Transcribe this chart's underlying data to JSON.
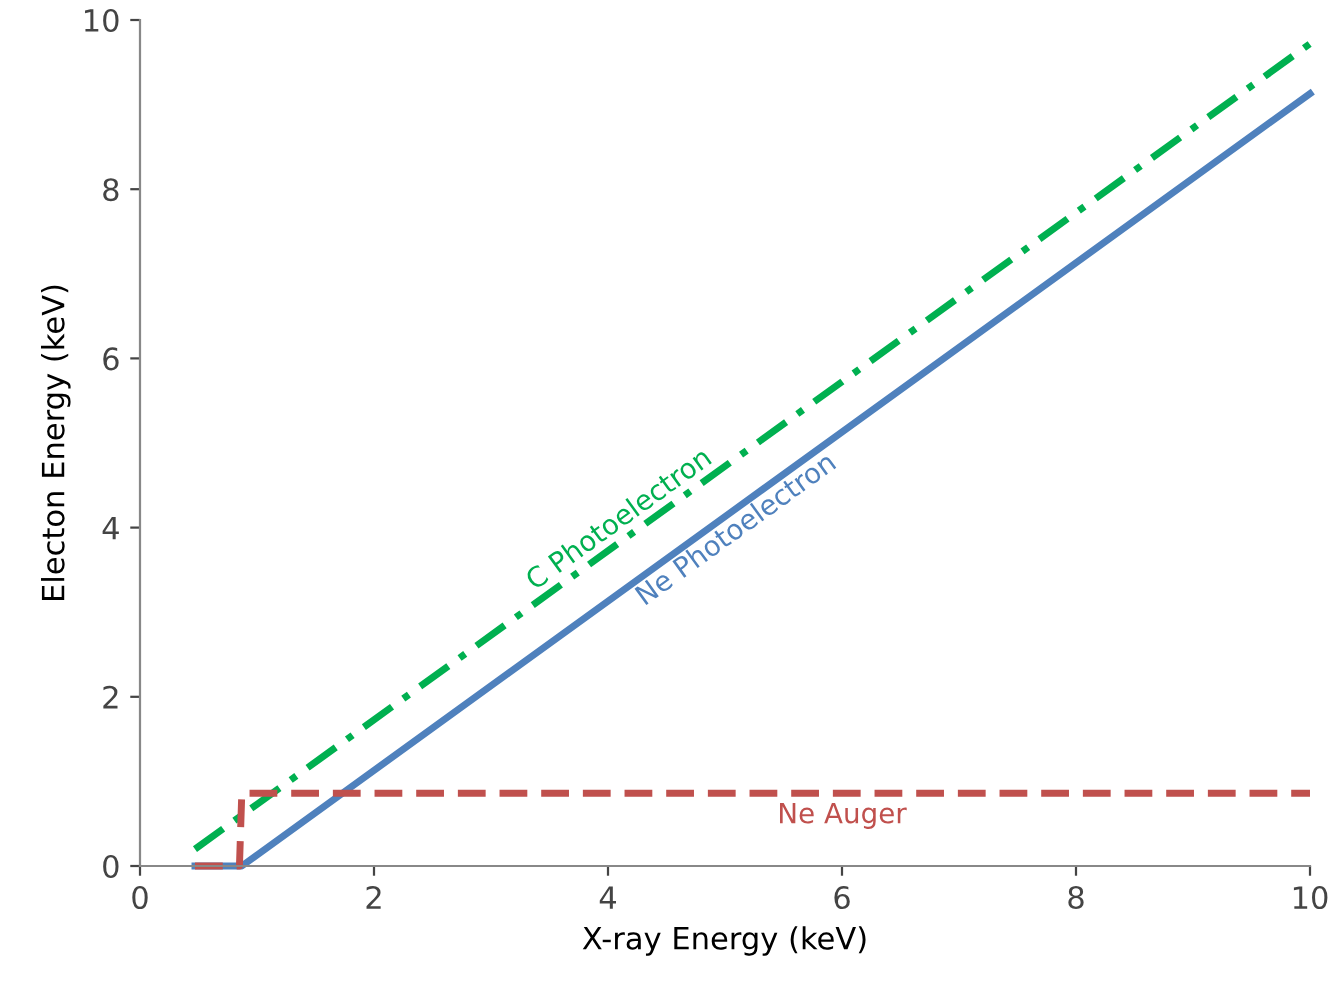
{
  "chart_data": {
    "type": "line",
    "xlabel": "X-ray Energy (keV)",
    "ylabel": "Electon Energy (keV)",
    "xlim": [
      0,
      10
    ],
    "ylim": [
      0,
      10
    ],
    "xticks": [
      0,
      2,
      4,
      6,
      8,
      10
    ],
    "yticks": [
      0,
      2,
      4,
      6,
      8,
      10
    ],
    "grid": false,
    "legend": false,
    "series": [
      {
        "name": "C Photoelectron",
        "color": "#00b050",
        "line_style": "dashdot",
        "x": [
          0.47,
          10
        ],
        "values": [
          0.2,
          9.72
        ]
      },
      {
        "name": "Ne Photoelectron",
        "color": "#4f81bd",
        "line_style": "solid",
        "x": [
          0.47,
          0.87,
          10
        ],
        "values": [
          0,
          0,
          9.13
        ]
      },
      {
        "name": "Ne Auger",
        "color": "#c0504d",
        "line_style": "dashed",
        "x": [
          0.47,
          0.85,
          0.87,
          10
        ],
        "values": [
          0,
          0,
          0.86,
          0.86
        ]
      }
    ]
  }
}
